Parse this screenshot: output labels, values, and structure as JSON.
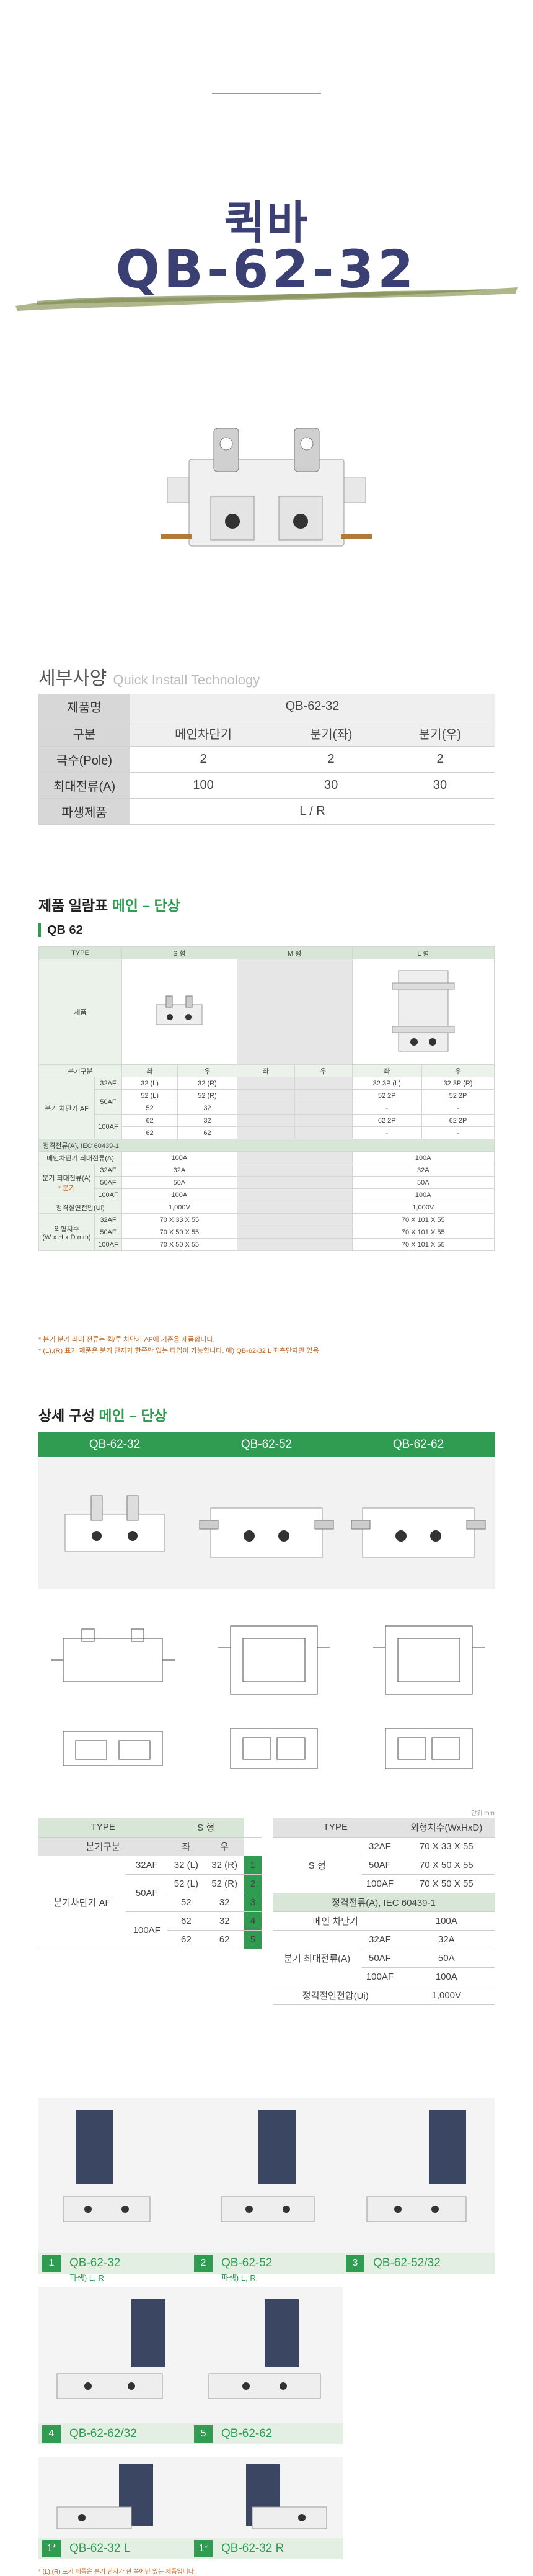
{
  "hero": {
    "title_kr": "퀵바",
    "model": "QB-62-32"
  },
  "spec": {
    "title": "세부사양",
    "subtitle": "Quick Install Technology",
    "rows": [
      {
        "label": "제품명",
        "cells": [
          "QB-62-32"
        ]
      },
      {
        "label": "구분",
        "cells": [
          "메인차단기",
          "분기(좌)",
          "분기(우)"
        ]
      },
      {
        "label": "극수(Pole)",
        "cells": [
          "2",
          "2",
          "2"
        ]
      },
      {
        "label": "최대전류(A)",
        "cells": [
          "100",
          "30",
          "30"
        ]
      },
      {
        "label": "파생제품",
        "cells": [
          "L / R"
        ]
      }
    ]
  },
  "lineup": {
    "title": "제품 일람표",
    "title_green": "메인 – 단상",
    "subtitle": "QB 62",
    "type": "TYPE",
    "s": "S 형",
    "m": "M 형",
    "l": "L 형",
    "product": "제품",
    "branch_div": "분기구분",
    "left": "좌",
    "right": "우",
    "branch_af": "분기 차단기 AF",
    "af32": "32AF",
    "af50": "50AF",
    "af100": "100AF",
    "s_rows": [
      [
        "32 (L)",
        "32 (R)"
      ],
      [
        "52 (L)",
        "52 (R)"
      ],
      [
        "52",
        "32"
      ],
      [
        "62",
        "32"
      ],
      [
        "62",
        "62"
      ]
    ],
    "l_rows": [
      [
        "32 3P (L)",
        "32 3P (R)"
      ],
      [
        "52 2P",
        "52 2P"
      ],
      [
        "-",
        "-"
      ],
      [
        "62 2P",
        "62 2P"
      ],
      [
        "-",
        "-"
      ]
    ],
    "rated": "정격전류(A), IEC 60439-1",
    "main_af": "메인차단기 최대전류(A)",
    "branch_max": "분기 최대전류(A)",
    "branch_star": "* 분기",
    "s_main": "100A",
    "l_main": "100A",
    "s_b": [
      "32A",
      "50A",
      "100A"
    ],
    "l_b": [
      "32A",
      "50A",
      "100A"
    ],
    "voltage": "정격절연전압(Ui)",
    "s_v": "1,000V",
    "l_v": "1,000V",
    "dims": "외형치수",
    "dims_unit": "(W x H x D mm)",
    "s_d": [
      "70 X 33 X 55",
      "70 X 50 X 55",
      "70 X 50 X 55"
    ],
    "l_d": [
      "70 X 101 X 55",
      "70 X 101 X 55",
      "70 X 101 X 55"
    ],
    "notes": [
      "* 분기 분기 최대 전류는 퀵/루 차단기 AF에 기준을 제품합니다.",
      "* (L),(R) 표기 제품은 분기 단자가 한쪽만 있는 타입이 가능합니다. 예) QB-62-32 L 좌측단자만 있음"
    ]
  },
  "detail": {
    "title": "상세 구성",
    "title_green": "메인 – 단상",
    "tabs": [
      "QB-62-32",
      "QB-62-52",
      "QB-62-62"
    ],
    "unit": "단위 mm",
    "left_table": {
      "type": "TYPE",
      "s": "S 형",
      "branch_div": "분기구분",
      "left": "좌",
      "right": "우",
      "branch_af": "분기차단기 AF",
      "rows": [
        {
          "af": "32AF",
          "l": "32 (L)",
          "r": "32 (R)",
          "n": "1"
        },
        {
          "af": "50AF",
          "l": "52 (L)",
          "r": "52 (R)",
          "n": "2"
        },
        {
          "af": "",
          "l": "52",
          "r": "32",
          "n": "3"
        },
        {
          "af": "100AF",
          "l": "62",
          "r": "32",
          "n": "4"
        },
        {
          "af": "",
          "l": "62",
          "r": "62",
          "n": "5"
        }
      ]
    },
    "right_table": {
      "type": "TYPE",
      "dims": "외형치수(WxHxD)",
      "s": "S 형",
      "dim_rows": [
        [
          "32AF",
          "70 X 33 X 55"
        ],
        [
          "50AF",
          "70 X 50 X 55"
        ],
        [
          "100AF",
          "70 X 50 X 55"
        ]
      ],
      "rated": "정격전류(A), IEC 60439-1",
      "main": "메인 차단기",
      "main_v": "100A",
      "branch": "분기 최대전류(A)",
      "b_rows": [
        [
          "32AF",
          "32A"
        ],
        [
          "50AF",
          "50A"
        ],
        [
          "100AF",
          "100A"
        ]
      ],
      "voltage": "정격절연전압(Ui)",
      "voltage_v": "1,000V"
    }
  },
  "gallery": [
    {
      "num": "1",
      "label": "QB-62-32",
      "sub": "파생) L, R"
    },
    {
      "num": "2",
      "label": "QB-62-52",
      "sub": "파생) L, R"
    },
    {
      "num": "3",
      "label": "QB-62-52/32",
      "sub": ""
    },
    {
      "num": "4",
      "label": "QB-62-62/32",
      "sub": ""
    },
    {
      "num": "5",
      "label": "QB-62-62",
      "sub": ""
    },
    {
      "num": "1*",
      "label": "QB-62-32 L",
      "sub": ""
    },
    {
      "num": "1*",
      "label": "QB-62-32 R",
      "sub": ""
    }
  ],
  "footnote": "* (L),(R) 표기 제품은 분기 단자가 한 쪽에만 있는 제품입니다."
}
